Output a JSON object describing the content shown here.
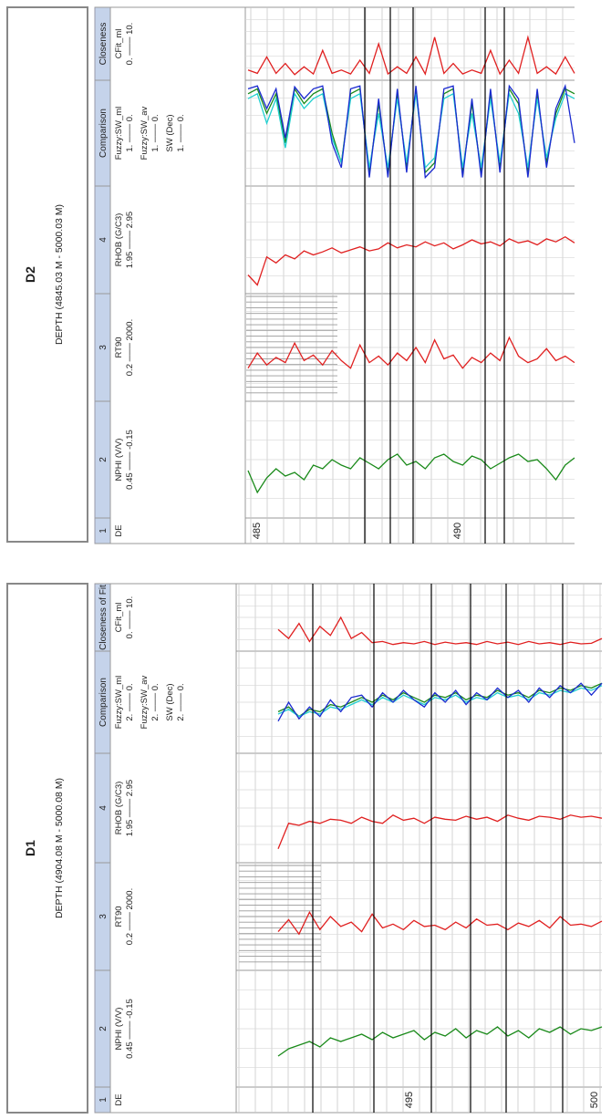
{
  "panels": [
    {
      "id": "D2",
      "title": "D2",
      "depth_label": "DEPTH (4845.03 M - 5000.03 M)",
      "headers": [
        "1",
        "2",
        "3",
        "4",
        "Comparison",
        "Closeness"
      ],
      "track_labels": {
        "t1": [
          "DE"
        ],
        "t2": [
          "NPHI (V/V)",
          "0.45 ─── -0.15"
        ],
        "t3": [
          "RT90",
          "0.2 ─── 2000."
        ],
        "t4": [
          "RHOB (G/C3)",
          "1.95 ─── 2.95"
        ],
        "t5a": [
          "Fuzzy:SW_ml",
          "1. ─── 0."
        ],
        "t5b": [
          "Fuzzy:SW_av",
          "1. ─── 0."
        ],
        "t5c": [
          "SW (Dec)",
          "1. ─── 0."
        ],
        "t6": [
          "CFit_ml",
          "0. ─── 10."
        ]
      },
      "depth_ticks": [
        "485",
        "490"
      ],
      "colors": {
        "npmi": "#1a8a1a",
        "rt": "#e02020",
        "rhob": "#e02020",
        "sw_ml": "#1a8a1a",
        "sw_av": "#20d0d0",
        "sw": "#1a2ad0",
        "cfit": "#e02020",
        "header_bg": "#c5d3ea"
      }
    },
    {
      "id": "D1",
      "title": "D1",
      "depth_label": "DEPTH (4904.08 M - 5000.08 M)",
      "headers": [
        "1",
        "2",
        "3",
        "4",
        "Comparison",
        "Closeness of Fit"
      ],
      "track_labels": {
        "t1": [
          "DE"
        ],
        "t2": [
          "NPHI (V/V)",
          "0.45 ─── -0.15"
        ],
        "t3": [
          "RT90",
          "0.2 ─── 2000."
        ],
        "t4": [
          "RHOB (G/C3)",
          "1.95 ─── 2.95"
        ],
        "t5a": [
          "Fuzzy:SW_ml",
          "2. ─── 0."
        ],
        "t5b": [
          "Fuzzy:SW_av",
          "2. ─── 0."
        ],
        "t5c": [
          "SW (Dec)",
          "2. ─── 0."
        ],
        "t6": [
          "CFit_ml",
          "0. ─── 10."
        ]
      },
      "depth_ticks": [
        "495",
        "500"
      ],
      "colors": {
        "npmi": "#1a8a1a",
        "rt": "#e02020",
        "rhob": "#e02020",
        "sw_ml": "#1a8a1a",
        "sw_av": "#20d0d0",
        "sw": "#1a2ad0",
        "cfit": "#e02020",
        "header_bg": "#c5d3ea"
      }
    }
  ],
  "chart_data": [
    {
      "type": "line",
      "title": "D2",
      "subtitle": "DEPTH (4845.03 M - 5000.03 M)",
      "series": [
        {
          "name": "NPHI (V/V)",
          "range": [
            0.45,
            -0.15
          ],
          "values": [
            0.21,
            0.33,
            0.25,
            0.2,
            0.24,
            0.22,
            0.26,
            0.18,
            0.2,
            0.15,
            0.18,
            0.2,
            0.14,
            0.17,
            0.2,
            0.15,
            0.12,
            0.18,
            0.16,
            0.2,
            0.14,
            0.12,
            0.16,
            0.18,
            0.13,
            0.15,
            0.2,
            0.17,
            0.14,
            0.12,
            0.16,
            0.15,
            0.2,
            0.26,
            0.18,
            0.14
          ]
        },
        {
          "name": "RT90",
          "range": [
            0.2,
            2000
          ],
          "values": [
            3,
            12,
            4,
            8,
            5,
            30,
            6,
            10,
            4,
            15,
            6,
            3,
            25,
            5,
            9,
            4,
            12,
            6,
            20,
            5,
            40,
            7,
            10,
            3,
            8,
            5,
            12,
            6,
            50,
            9,
            5,
            7,
            18,
            6,
            9,
            5
          ]
        },
        {
          "name": "RHOB (G/C3)",
          "range": [
            1.95,
            2.95
          ],
          "values": [
            2.1,
            2.0,
            2.28,
            2.22,
            2.3,
            2.26,
            2.34,
            2.3,
            2.33,
            2.37,
            2.32,
            2.35,
            2.38,
            2.34,
            2.36,
            2.42,
            2.37,
            2.4,
            2.38,
            2.43,
            2.39,
            2.42,
            2.36,
            2.4,
            2.45,
            2.41,
            2.43,
            2.39,
            2.46,
            2.42,
            2.44,
            2.4,
            2.46,
            2.43,
            2.48,
            2.42
          ]
        },
        {
          "name": "Fuzzy:SW_ml",
          "range": [
            1,
            0
          ],
          "values": [
            0.1,
            0.05,
            0.3,
            0.1,
            0.6,
            0.05,
            0.2,
            0.1,
            0.05,
            0.5,
            0.8,
            0.1,
            0.05,
            0.9,
            0.2,
            0.9,
            0.1,
            0.85,
            0.05,
            0.9,
            0.8,
            0.1,
            0.05,
            0.9,
            0.2,
            0.9,
            0.1,
            0.85,
            0.05,
            0.2,
            0.9,
            0.1,
            0.8,
            0.3,
            0.05,
            0.1
          ]
        },
        {
          "name": "Fuzzy:SW_av",
          "range": [
            1,
            0
          ],
          "values": [
            0.15,
            0.1,
            0.4,
            0.15,
            0.65,
            0.1,
            0.25,
            0.15,
            0.1,
            0.55,
            0.8,
            0.15,
            0.1,
            0.85,
            0.3,
            0.85,
            0.15,
            0.8,
            0.1,
            0.85,
            0.75,
            0.15,
            0.1,
            0.85,
            0.3,
            0.85,
            0.15,
            0.8,
            0.1,
            0.3,
            0.85,
            0.15,
            0.75,
            0.35,
            0.1,
            0.15
          ]
        },
        {
          "name": "SW (Dec)",
          "range": [
            1,
            0
          ],
          "values": [
            0.05,
            0.02,
            0.25,
            0.05,
            0.55,
            0.03,
            0.15,
            0.05,
            0.02,
            0.6,
            0.85,
            0.05,
            0.02,
            0.95,
            0.15,
            0.95,
            0.05,
            0.9,
            0.02,
            0.95,
            0.85,
            0.05,
            0.02,
            0.95,
            0.15,
            0.95,
            0.05,
            0.9,
            0.02,
            0.15,
            0.95,
            0.05,
            0.85,
            0.25,
            0.02,
            0.6
          ]
        },
        {
          "name": "CFit_ml",
          "range": [
            0,
            10
          ],
          "values": [
            1,
            0.5,
            3,
            0.5,
            2,
            0.3,
            1.5,
            0.4,
            4,
            0.5,
            1,
            0.4,
            2.5,
            0.5,
            5,
            0.4,
            1.5,
            0.5,
            3,
            0.4,
            6,
            0.5,
            2,
            0.4,
            1,
            0.5,
            4,
            0.4,
            2.5,
            0.5,
            6,
            0.5,
            1.5,
            0.4,
            3,
            0.5
          ]
        }
      ],
      "depth_ticks": [
        485,
        490
      ]
    },
    {
      "type": "line",
      "title": "D1",
      "subtitle": "DEPTH (4904.08 M - 5000.08 M)",
      "series": [
        {
          "name": "NPHI (V/V)",
          "range": [
            0.45,
            -0.15
          ],
          "values": [
            0.3,
            0.26,
            0.24,
            0.22,
            0.25,
            0.2,
            0.22,
            0.2,
            0.18,
            0.21,
            0.17,
            0.2,
            0.18,
            0.16,
            0.21,
            0.17,
            0.19,
            0.15,
            0.2,
            0.16,
            0.18,
            0.14,
            0.19,
            0.16,
            0.2,
            0.15,
            0.17,
            0.14,
            0.18,
            0.15,
            0.16,
            0.14
          ]
        },
        {
          "name": "RT90",
          "range": [
            0.2,
            2000
          ],
          "values": [
            5,
            15,
            4,
            30,
            6,
            20,
            8,
            12,
            5,
            25,
            7,
            10,
            6,
            14,
            8,
            9,
            6,
            12,
            7,
            16,
            9,
            10,
            6,
            11,
            8,
            14,
            7,
            20,
            9,
            10,
            8,
            13
          ]
        },
        {
          "name": "RHOB (G/C3)",
          "range": [
            1.95,
            2.95
          ],
          "values": [
            2.05,
            2.3,
            2.28,
            2.32,
            2.3,
            2.34,
            2.33,
            2.3,
            2.36,
            2.32,
            2.3,
            2.38,
            2.33,
            2.35,
            2.3,
            2.36,
            2.34,
            2.33,
            2.37,
            2.34,
            2.36,
            2.32,
            2.38,
            2.35,
            2.33,
            2.37,
            2.36,
            2.34,
            2.38,
            2.36,
            2.37,
            2.35
          ]
        },
        {
          "name": "Fuzzy:SW_ml",
          "range": [
            2,
            0
          ],
          "values": [
            1.2,
            1.1,
            1.3,
            1.15,
            1.2,
            1.05,
            1.1,
            1.0,
            0.9,
            1.0,
            0.85,
            0.95,
            0.8,
            0.9,
            1.0,
            0.85,
            0.9,
            0.8,
            0.95,
            0.85,
            0.9,
            0.75,
            0.85,
            0.8,
            0.9,
            0.75,
            0.8,
            0.7,
            0.75,
            0.65,
            0.7,
            0.6
          ]
        },
        {
          "name": "Fuzzy:SW_av",
          "range": [
            2,
            0
          ],
          "values": [
            1.25,
            1.15,
            1.3,
            1.2,
            1.25,
            1.1,
            1.15,
            1.05,
            0.95,
            1.05,
            0.9,
            1.0,
            0.85,
            0.95,
            1.05,
            0.9,
            0.95,
            0.85,
            1.0,
            0.9,
            0.95,
            0.8,
            0.9,
            0.85,
            0.95,
            0.8,
            0.85,
            0.75,
            0.8,
            0.7,
            0.75,
            0.65
          ]
        },
        {
          "name": "SW (Dec)",
          "range": [
            2,
            0
          ],
          "values": [
            1.4,
            1.0,
            1.35,
            1.1,
            1.3,
            0.95,
            1.2,
            0.9,
            0.85,
            1.1,
            0.8,
            1.0,
            0.75,
            0.95,
            1.1,
            0.8,
            1.0,
            0.75,
            1.05,
            0.8,
            0.95,
            0.7,
            0.9,
            0.75,
            1.0,
            0.7,
            0.9,
            0.65,
            0.8,
            0.6,
            0.85,
            0.6
          ]
        },
        {
          "name": "CFit_ml",
          "range": [
            0,
            10
          ],
          "values": [
            3,
            1.5,
            4,
            1,
            3.5,
            2,
            5,
            1.5,
            2.5,
            0.8,
            1,
            0.5,
            0.8,
            0.6,
            1,
            0.5,
            0.9,
            0.6,
            0.8,
            0.5,
            1,
            0.6,
            0.9,
            0.5,
            1,
            0.6,
            0.8,
            0.5,
            0.9,
            0.6,
            0.7,
            1.5
          ]
        }
      ],
      "depth_ticks": [
        495,
        500
      ]
    }
  ]
}
